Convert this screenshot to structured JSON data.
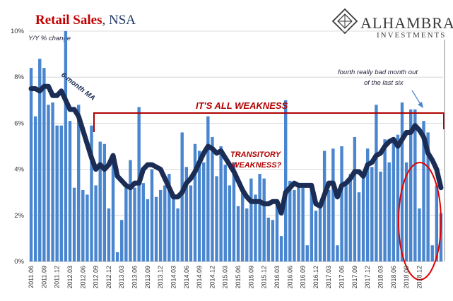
{
  "title": {
    "main": "Retail Sales",
    "sub": ", NSA"
  },
  "brand": {
    "name": "ALHAMBRA",
    "sub": "INVESTMENTS"
  },
  "chart_data": {
    "type": "bar",
    "ylabel": "Y/Y % change",
    "ylim": [
      0,
      10
    ],
    "yticks": [
      "0%",
      "2%",
      "4%",
      "6%",
      "8%",
      "10%"
    ],
    "xtick_labels": [
      "2011.06",
      "2011.09",
      "2011.12",
      "2012.03",
      "2012.06",
      "2012.09",
      "2012.12",
      "2013.03",
      "2013.06",
      "2013.09",
      "2013.12",
      "2014.03",
      "2014.06",
      "2014.09",
      "2014.12",
      "2015.03",
      "2015.06",
      "2015.09",
      "2015.12",
      "2016.03",
      "2016.06",
      "2016.09",
      "2016.12",
      "2017.03",
      "2017.06",
      "2017.09",
      "2017.12",
      "2018.03",
      "2018.06",
      "2018.09",
      "2018.12"
    ],
    "series": [
      {
        "type": "bar",
        "color": "#4a86cf",
        "values": [
          8.4,
          6.3,
          8.8,
          8.4,
          6.8,
          6.9,
          5.9,
          5.9,
          10.0,
          6.1,
          3.2,
          6.8,
          3.1,
          2.9,
          5.9,
          3.3,
          5.2,
          5.1,
          2.3,
          4.5,
          0.4,
          1.8,
          3.2,
          4.4,
          3.2,
          6.7,
          3.4,
          2.7,
          4.0,
          2.8,
          3.1,
          3.3,
          3.8,
          2.8,
          2.3,
          5.6,
          4.1,
          3.3,
          5.1,
          4.8,
          4.3,
          6.3,
          5.4,
          3.7,
          5.0,
          4.2,
          3.3,
          4.3,
          2.4,
          3.0,
          2.3,
          3.6,
          2.9,
          3.8,
          3.6,
          1.9,
          1.8,
          2.6,
          1.1,
          7.0,
          3.5,
          3.1,
          3.4,
          3.2,
          0.7,
          3.1,
          2.2,
          2.3,
          4.8,
          3.1,
          4.9,
          0.7,
          5.0,
          3.3,
          3.8,
          5.4,
          3.0,
          3.9,
          4.9,
          4.1,
          6.8,
          3.9,
          5.3,
          4.3,
          5.3,
          5.5,
          6.9,
          4.3,
          6.6,
          6.6,
          2.3,
          6.1,
          5.6,
          0.7,
          3.3,
          2.1
        ]
      },
      {
        "type": "line",
        "name": "6-month MA",
        "color": "#1b2d55",
        "values": [
          7.5,
          7.5,
          7.4,
          7.6,
          7.6,
          7.2,
          7.2,
          7.4,
          7.0,
          6.6,
          6.6,
          6.3,
          5.7,
          5.1,
          4.5,
          4.0,
          4.2,
          4.0,
          4.2,
          4.6,
          3.7,
          3.5,
          3.3,
          3.2,
          3.4,
          3.4,
          4.0,
          4.2,
          4.2,
          4.1,
          4.0,
          3.6,
          3.2,
          2.8,
          2.8,
          3.0,
          3.4,
          3.6,
          3.9,
          4.3,
          4.7,
          5.0,
          4.9,
          4.7,
          4.8,
          4.5,
          4.2,
          3.9,
          3.5,
          3.1,
          2.8,
          2.6,
          2.6,
          2.6,
          2.5,
          2.5,
          2.6,
          2.6,
          2.1,
          3.0,
          3.2,
          3.4,
          3.3,
          3.3,
          3.3,
          3.3,
          2.5,
          2.4,
          2.9,
          3.4,
          3.4,
          2.8,
          3.3,
          3.4,
          3.6,
          3.9,
          3.9,
          3.7,
          4.2,
          4.3,
          4.6,
          4.7,
          5.0,
          5.2,
          5.3,
          5.0,
          5.3,
          5.6,
          5.6,
          5.9,
          5.7,
          5.4,
          4.7,
          4.4,
          4.0,
          3.2
        ]
      }
    ],
    "annotations": {
      "ma_label": "6-month MA",
      "weakness": "IT'S ALL WEAKNESS",
      "transitory_1": "TRANSITORY",
      "transitory_2": "WEAKNESS?",
      "fourth_1": "fourth really bad month out",
      "fourth_2": "of the last six"
    }
  }
}
